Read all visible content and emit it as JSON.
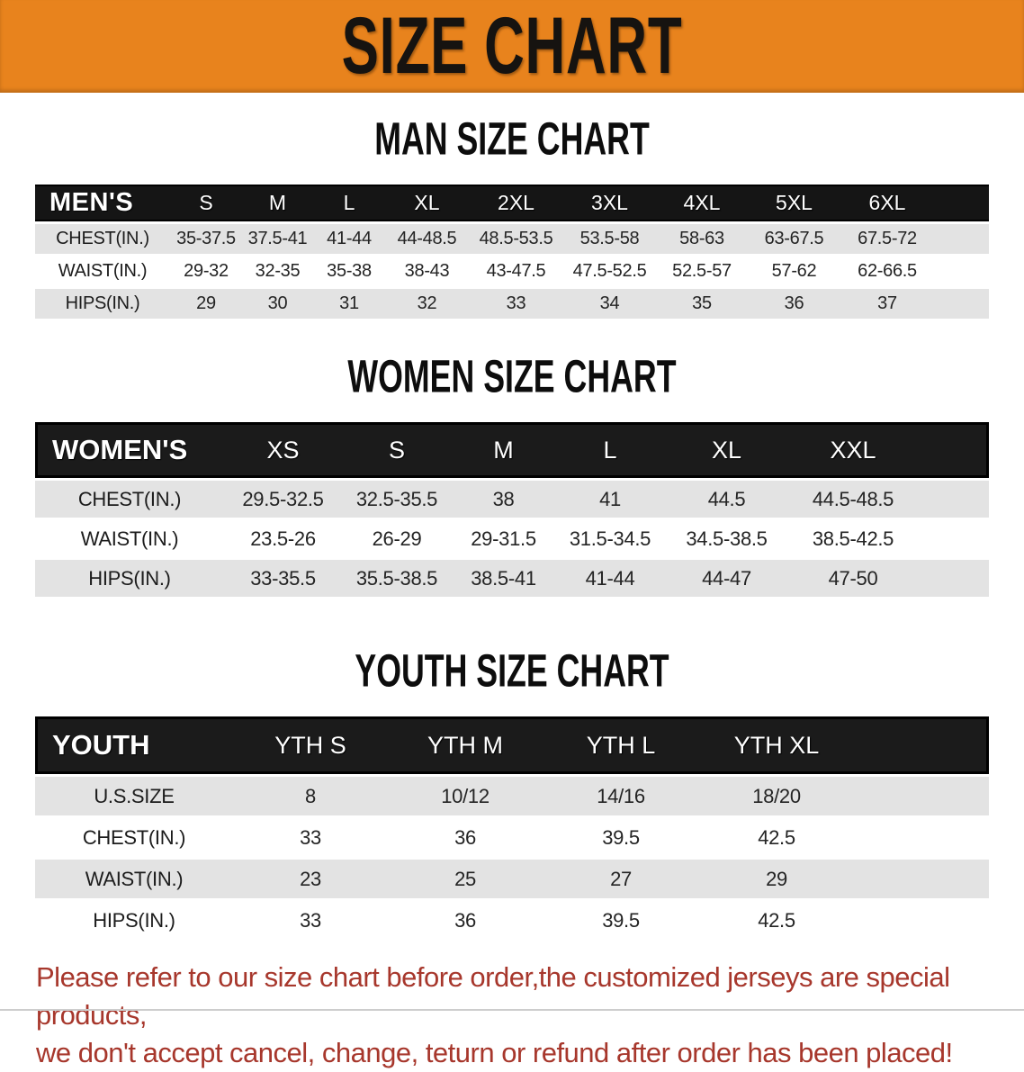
{
  "banner": {
    "title": "SIZE CHART",
    "bg_color": "#E8831D",
    "text_color": "#161310"
  },
  "colors": {
    "header_bar": "#151515",
    "row_shade": "#e3e3e3",
    "row_plain": "#ffffff",
    "disclaimer_red": "#a7372c"
  },
  "sections": [
    {
      "heading": "MAN SIZE CHART",
      "table": {
        "header": [
          "MEN'S",
          "S",
          "M",
          "L",
          "XL",
          "2XL",
          "3XL",
          "4XL",
          "5XL",
          "6XL"
        ],
        "rows": [
          {
            "label": "CHEST(IN.)",
            "values": [
              "35-37.5",
              "37.5-41",
              "41-44",
              "44-48.5",
              "48.5-53.5",
              "53.5-58",
              "58-63",
              "63-67.5",
              "67.5-72"
            ]
          },
          {
            "label": "WAIST(IN.)",
            "values": [
              "29-32",
              "32-35",
              "35-38",
              "38-43",
              "43-47.5",
              "47.5-52.5",
              "52.5-57",
              "57-62",
              "62-66.5"
            ]
          },
          {
            "label": "HIPS(IN.)",
            "values": [
              "29",
              "30",
              "31",
              "32",
              "33",
              "34",
              "35",
              "36",
              "37"
            ]
          }
        ]
      }
    },
    {
      "heading": "WOMEN SIZE CHART",
      "table": {
        "header": [
          "WOMEN'S",
          "XS",
          "S",
          "M",
          "L",
          "XL",
          "XXL"
        ],
        "rows": [
          {
            "label": "CHEST(IN.)",
            "values": [
              "29.5-32.5",
              "32.5-35.5",
              "38",
              "41",
              "44.5",
              "44.5-48.5"
            ]
          },
          {
            "label": "WAIST(IN.)",
            "values": [
              "23.5-26",
              "26-29",
              "29-31.5",
              "31.5-34.5",
              "34.5-38.5",
              "38.5-42.5"
            ]
          },
          {
            "label": "HIPS(IN.)",
            "values": [
              "33-35.5",
              "35.5-38.5",
              "38.5-41",
              "41-44",
              "44-47",
              "47-50"
            ]
          }
        ]
      }
    },
    {
      "heading": "YOUTH SIZE CHART",
      "table": {
        "header": [
          "YOUTH",
          "YTH S",
          "YTH M",
          "YTH L",
          "YTH XL"
        ],
        "rows": [
          {
            "label": "U.S.SIZE",
            "values": [
              "8",
              "10/12",
              "14/16",
              "18/20"
            ]
          },
          {
            "label": "CHEST(IN.)",
            "values": [
              "33",
              "36",
              "39.5",
              "42.5"
            ]
          },
          {
            "label": "WAIST(IN.)",
            "values": [
              "23",
              "25",
              "27",
              "29"
            ]
          },
          {
            "label": "HIPS(IN.)",
            "values": [
              "33",
              "36",
              "39.5",
              "42.5"
            ]
          }
        ]
      }
    }
  ],
  "footer": {
    "line1": "Please refer to our size chart before order,the customized jerseys are special products,",
    "line2": "we don't accept cancel, change, teturn or refund after order has been placed!"
  }
}
